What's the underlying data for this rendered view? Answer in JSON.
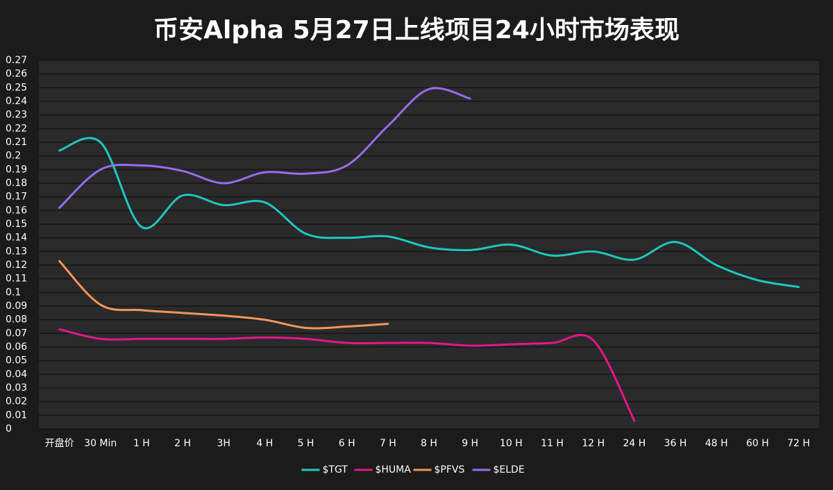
{
  "chart_data": {
    "type": "line",
    "title": "币安Alpha 5月27日上线项目24小时市场表现",
    "categories": [
      "开盘价",
      "30 Min",
      "1 H",
      "2 H",
      "3H",
      "4 H",
      "5 H",
      "6 H",
      "7 H",
      "8 H",
      "9 H",
      "10 H",
      "11 H",
      "12 H",
      "24 H",
      "36 H",
      "48 H",
      "60 H",
      "72 H"
    ],
    "series": [
      {
        "name": "$TGT",
        "color": "#1fc8c0",
        "values": [
          0.204,
          0.21,
          0.148,
          0.171,
          0.164,
          0.166,
          0.143,
          0.14,
          0.141,
          0.133,
          0.131,
          0.135,
          0.127,
          0.13,
          0.124,
          0.137,
          0.12,
          0.109,
          0.104
        ]
      },
      {
        "name": "$HUMA",
        "color": "#e6168c",
        "values": [
          0.073,
          0.066,
          0.066,
          0.066,
          0.066,
          0.067,
          0.066,
          0.063,
          0.063,
          0.063,
          0.061,
          0.062,
          0.063,
          0.065,
          0.006,
          null,
          null,
          null,
          null
        ]
      },
      {
        "name": "$PFVS",
        "color": "#f5955a",
        "values": [
          0.123,
          0.091,
          0.087,
          0.085,
          0.083,
          0.08,
          0.074,
          0.075,
          0.077,
          null,
          null,
          null,
          null,
          null,
          null,
          null,
          null,
          null,
          null
        ]
      },
      {
        "name": "$ELDE",
        "color": "#9a6cf0",
        "values": [
          0.162,
          0.19,
          0.193,
          0.189,
          0.18,
          0.188,
          0.187,
          0.193,
          0.222,
          0.249,
          0.242,
          null,
          null,
          null,
          null,
          null,
          null,
          null,
          null
        ]
      }
    ],
    "ylim": [
      0,
      0.27
    ],
    "yticks": [
      0,
      0.01,
      0.02,
      0.03,
      0.04,
      0.05,
      0.06,
      0.07,
      0.08,
      0.09,
      0.1,
      0.11,
      0.12,
      0.13,
      0.14,
      0.15,
      0.16,
      0.17,
      0.18,
      0.19,
      0.2,
      0.21,
      0.22,
      0.23,
      0.24,
      0.25,
      0.26,
      0.27
    ],
    "grid": true,
    "legend": "bottom"
  }
}
